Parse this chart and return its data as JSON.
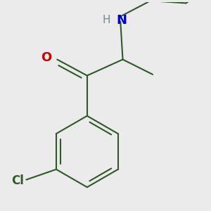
{
  "background_color": "#ebebeb",
  "bond_color": "#2d5a27",
  "bond_lw": 1.5,
  "atom_colors": {
    "O": "#cc0000",
    "N": "#0000cc",
    "H": "#6b8e8e",
    "Cl": "#2d5a27"
  },
  "fig_size": [
    3.0,
    3.0
  ],
  "dpi": 100
}
